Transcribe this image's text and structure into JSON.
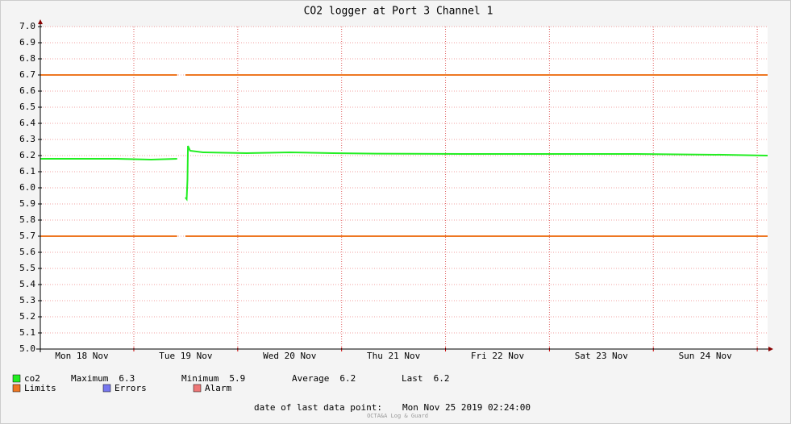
{
  "chart_data": {
    "type": "line",
    "title": "CO2 logger at Port 3 Channel 1",
    "xlim": [
      2.4,
      170.4
    ],
    "xticks": [
      {
        "value": 12,
        "label": "Mon 18 Nov"
      },
      {
        "value": 36,
        "label": "Tue 19 Nov"
      },
      {
        "value": 60,
        "label": "Wed 20 Nov"
      },
      {
        "value": 84,
        "label": "Thu 21 Nov"
      },
      {
        "value": 108,
        "label": "Fri 22 Nov"
      },
      {
        "value": 132,
        "label": "Sat 23 Nov"
      },
      {
        "value": 156,
        "label": "Sun 24 Nov"
      }
    ],
    "x_major_grid": [
      24,
      48,
      72,
      96,
      120,
      144,
      168
    ],
    "ylim": [
      5.0,
      7.0
    ],
    "yticks": [
      {
        "value": 5.0,
        "label": "5.0"
      },
      5.1,
      5.2,
      5.3,
      5.4,
      5.5,
      5.6,
      5.7,
      5.8,
      5.9,
      {
        "value": 6.0,
        "label": "6.0"
      },
      6.1,
      6.2,
      6.3,
      6.4,
      6.5,
      6.6,
      6.7,
      6.8,
      6.9,
      {
        "value": 7.0,
        "label": "7.0"
      }
    ],
    "grid": true,
    "series": [
      {
        "name": "co2",
        "color": "#22ee22",
        "x": [
          2.4,
          10,
          20,
          28,
          34,
          35,
          35.9,
          36.2,
          36.4,
          36.5,
          37,
          40,
          50,
          60,
          70,
          80,
          100,
          120,
          140,
          160,
          170.4
        ],
        "values": [
          6.18,
          6.18,
          6.18,
          6.175,
          6.18,
          null,
          5.94,
          5.93,
          6.05,
          6.26,
          6.23,
          6.22,
          6.215,
          6.22,
          6.215,
          6.212,
          6.21,
          6.21,
          6.21,
          6.205,
          6.2
        ]
      },
      {
        "name": "Limits",
        "color": "#ee7722",
        "x": [
          2.4,
          34,
          35,
          35.9,
          170.4
        ],
        "values": [
          6.7,
          6.7,
          null,
          6.7,
          6.7
        ]
      },
      {
        "name": "Limits",
        "color": "#ee7722",
        "x": [
          2.4,
          34,
          35,
          35.9,
          170.4
        ],
        "values": [
          5.7,
          5.7,
          null,
          5.7,
          5.7
        ]
      }
    ],
    "legend": [
      {
        "name": "co2",
        "color": "#22ee22"
      },
      {
        "name": "Limits",
        "color": "#ee7722"
      },
      {
        "name": "Errors",
        "color": "#7777ee"
      },
      {
        "name": "Alarm",
        "color": "#ee7777"
      }
    ],
    "stats": [
      {
        "label": "Maximum",
        "value": 6.3
      },
      {
        "label": "Minimum",
        "value": 5.9
      },
      {
        "label": "Average",
        "value": 6.2
      },
      {
        "label": "Last",
        "value": 6.2
      }
    ],
    "footer_label": "date of last data point:",
    "footer_value": "Mon Nov 25 2019 02:24:00",
    "watermark": "OCTA&A Log & Guard"
  }
}
